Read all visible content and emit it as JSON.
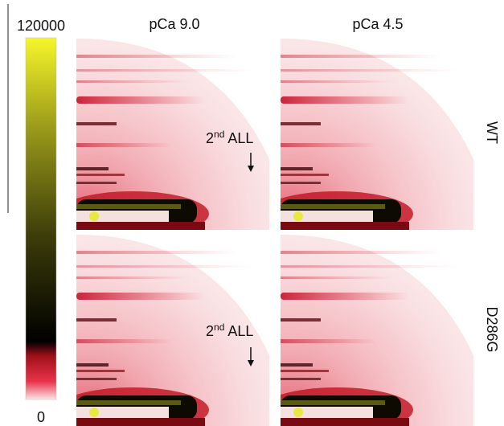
{
  "colorbar": {
    "max": 120000,
    "min": 0
  },
  "columns": [
    "pCa 9.0",
    "pCa 4.5"
  ],
  "rows": [
    "WT",
    "D286G"
  ],
  "annotations": [
    {
      "base": "2",
      "sup": "nd",
      "rest": "ALL"
    },
    {
      "base": "2",
      "sup": "nd",
      "rest": "ALL"
    }
  ]
}
